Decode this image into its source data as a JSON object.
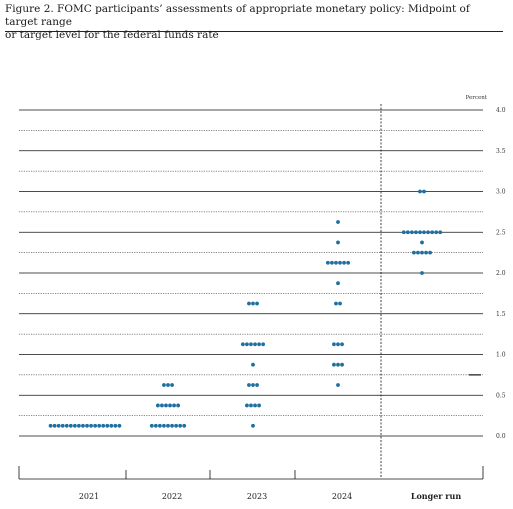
{
  "figure": {
    "title": "Figure 2.  FOMC participants’ assessments of appropriate monetary policy:  Midpoint of target range\nor target level for the federal funds rate"
  },
  "chart_data": {
    "type": "scatter",
    "subtype": "dot-plot",
    "unit_label": "Percent",
    "ylim": [
      0.0,
      4.0
    ],
    "ytick_values": [
      0.0,
      0.5,
      1.0,
      1.5,
      2.0,
      2.5,
      3.0,
      3.5,
      4.0
    ],
    "ytick_labels": [
      "0.0",
      "0.5",
      "1.0",
      "1.5",
      "2.0",
      "2.5",
      "3.0",
      "3.5",
      "4.0"
    ],
    "grid": true,
    "categories": [
      "2021",
      "2022",
      "2023",
      "2024",
      "Longer run"
    ],
    "dot_color": "#1f6fa0",
    "counts": [
      [
        {
          "rate": 0.125,
          "count": 18
        }
      ],
      [
        {
          "rate": 0.125,
          "count": 9
        },
        {
          "rate": 0.375,
          "count": 6
        },
        {
          "rate": 0.625,
          "count": 3
        }
      ],
      [
        {
          "rate": 0.125,
          "count": 1
        },
        {
          "rate": 0.375,
          "count": 4
        },
        {
          "rate": 0.625,
          "count": 3
        },
        {
          "rate": 0.875,
          "count": 1
        },
        {
          "rate": 1.125,
          "count": 6
        },
        {
          "rate": 1.625,
          "count": 3
        }
      ],
      [
        {
          "rate": 0.625,
          "count": 1
        },
        {
          "rate": 0.875,
          "count": 3
        },
        {
          "rate": 1.125,
          "count": 3
        },
        {
          "rate": 1.625,
          "count": 2
        },
        {
          "rate": 1.875,
          "count": 1
        },
        {
          "rate": 2.125,
          "count": 6
        },
        {
          "rate": 2.375,
          "count": 1
        },
        {
          "rate": 2.625,
          "count": 1
        }
      ],
      [
        {
          "rate": 2.0,
          "count": 1
        },
        {
          "rate": 2.25,
          "count": 5
        },
        {
          "rate": 2.375,
          "count": 1
        },
        {
          "rate": 2.5,
          "count": 10
        },
        {
          "rate": 3.0,
          "count": 2
        }
      ]
    ]
  }
}
